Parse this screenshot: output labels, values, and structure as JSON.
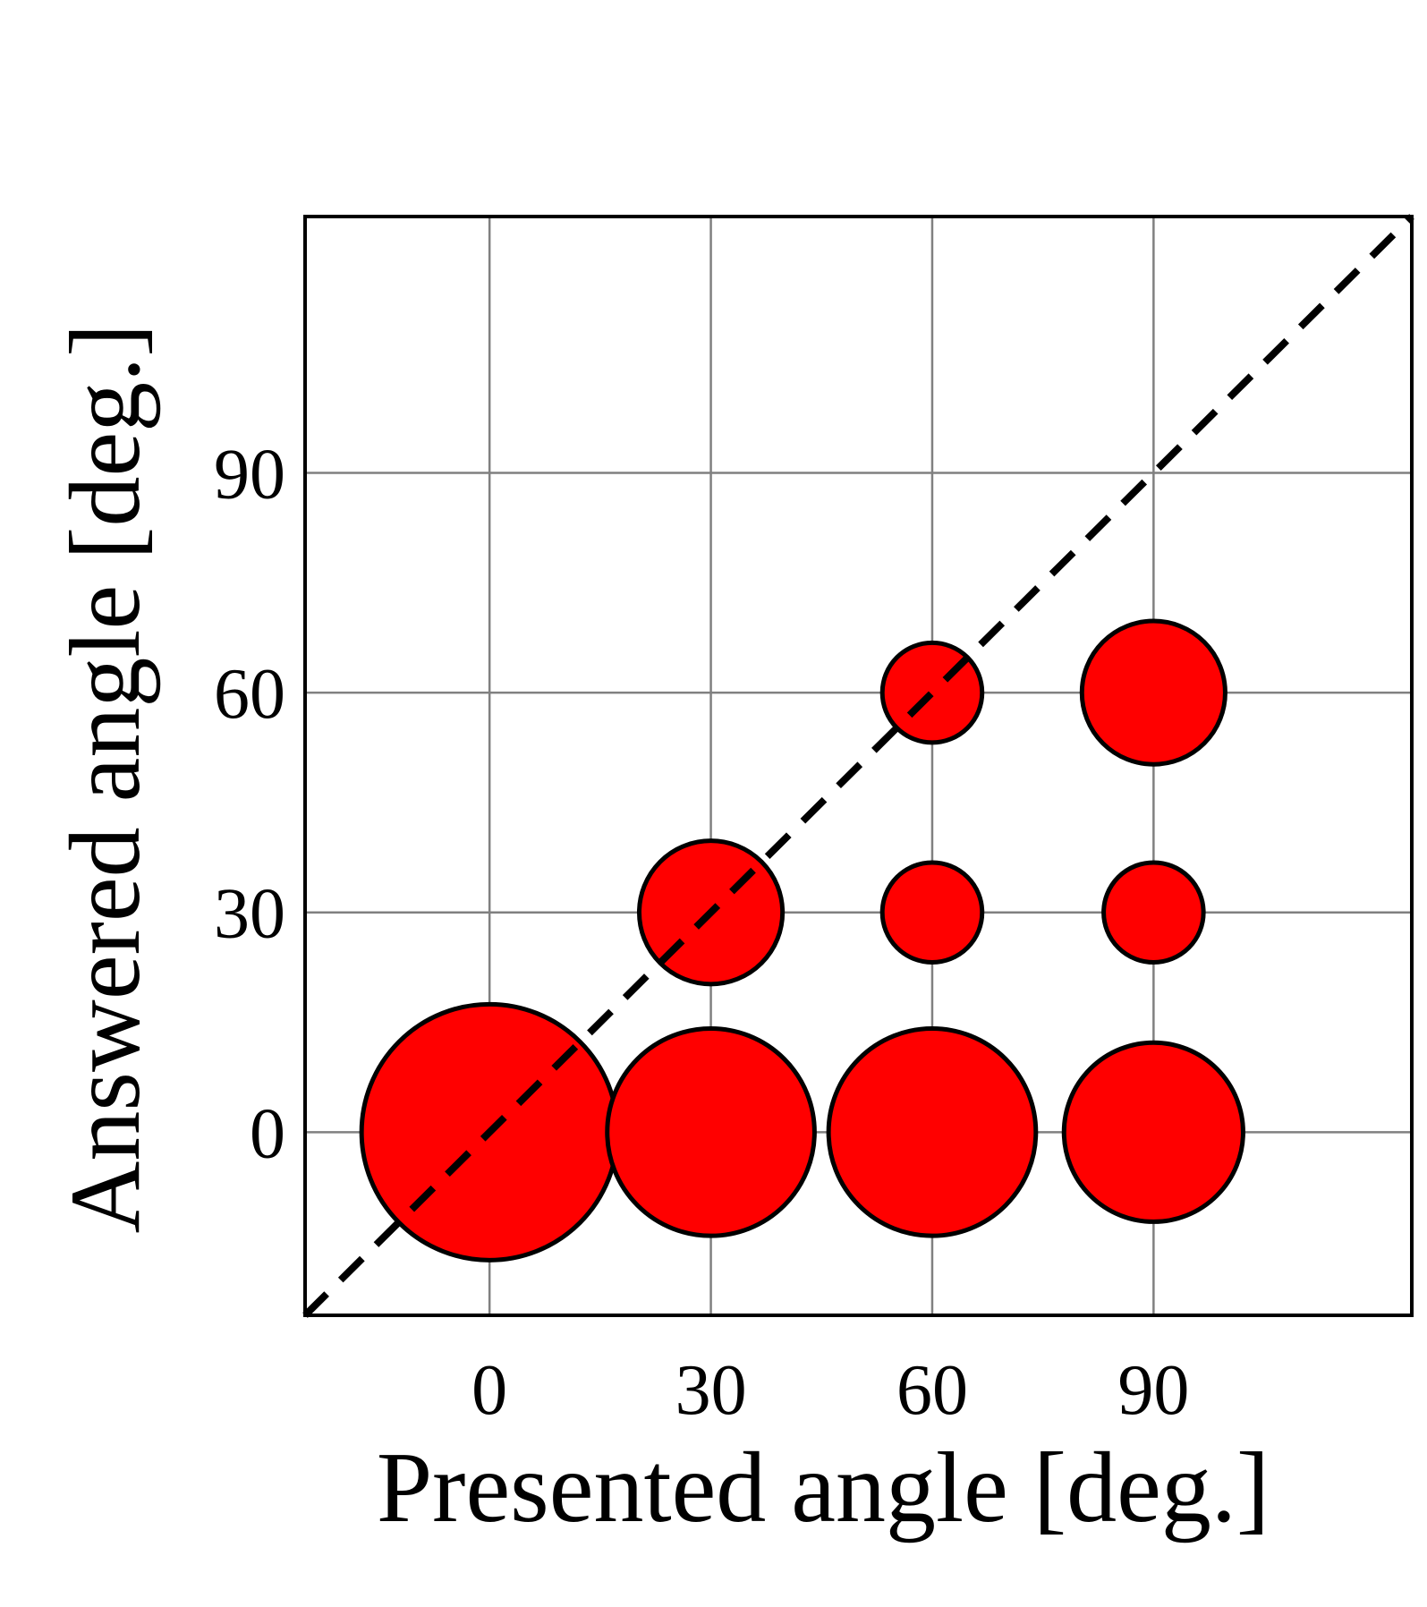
{
  "chart_data": {
    "type": "scatter",
    "subtype": "bubble",
    "title": "",
    "xlabel": "Presented angle [deg.]",
    "ylabel": "Answered angle [deg.]",
    "xlim": [
      -25,
      125
    ],
    "ylim": [
      -25,
      125
    ],
    "xticks": [
      0,
      30,
      60,
      90
    ],
    "yticks": [
      0,
      30,
      60,
      90
    ],
    "grid": true,
    "reference_line": {
      "style": "dashed",
      "from": [
        -25,
        -25
      ],
      "to": [
        125,
        125
      ]
    },
    "bubble_color": "#ff0000",
    "bubble_edge_color": "#000000",
    "points": [
      {
        "x": 0,
        "y": 0,
        "size": 1.0
      },
      {
        "x": 30,
        "y": 0,
        "size": 0.81
      },
      {
        "x": 60,
        "y": 0,
        "size": 0.81
      },
      {
        "x": 90,
        "y": 0,
        "size": 0.7
      },
      {
        "x": 30,
        "y": 30,
        "size": 0.56
      },
      {
        "x": 60,
        "y": 30,
        "size": 0.39
      },
      {
        "x": 90,
        "y": 30,
        "size": 0.39
      },
      {
        "x": 60,
        "y": 60,
        "size": 0.39
      },
      {
        "x": 90,
        "y": 60,
        "size": 0.56
      }
    ]
  }
}
